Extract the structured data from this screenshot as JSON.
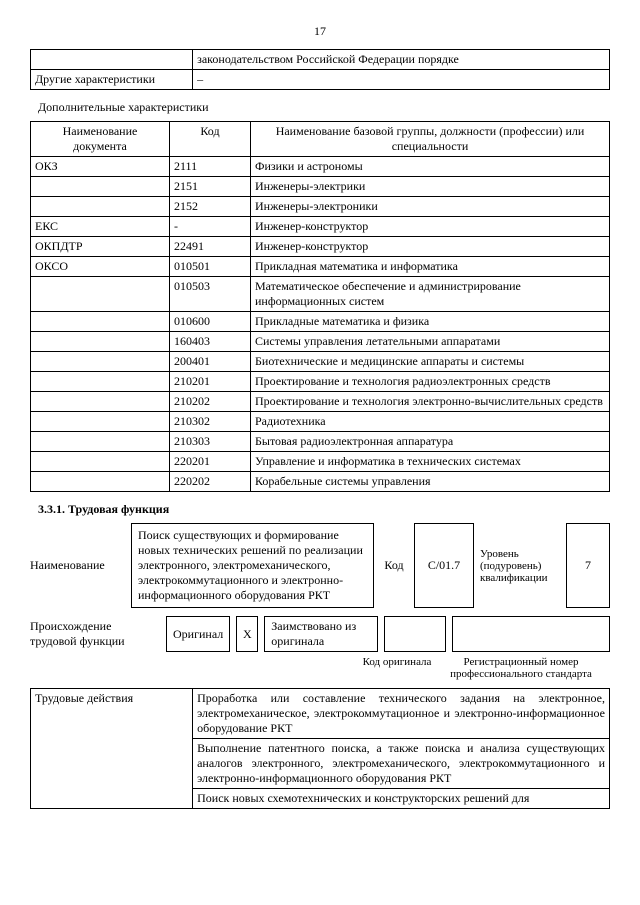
{
  "page_number": "17",
  "top_table": {
    "rows": [
      [
        "",
        "законодательством Российской Федерации порядке"
      ],
      [
        "Другие характеристики",
        "–"
      ]
    ]
  },
  "additional_title": "Дополнительные характеристики",
  "main_table": {
    "headers": [
      "Наименование документа",
      "Код",
      "Наименование базовой группы, должности (профессии) или специальности"
    ],
    "rows": [
      [
        "ОКЗ",
        "2111",
        "Физики и астрономы"
      ],
      [
        "",
        "2151",
        "Инженеры-электрики"
      ],
      [
        "",
        "2152",
        "Инженеры-электроники"
      ],
      [
        "ЕКС",
        "-",
        "Инженер-конструктор"
      ],
      [
        "ОКПДТР",
        "22491",
        "Инженер-конструктор"
      ],
      [
        "ОКСО",
        "010501",
        "Прикладная математика и информатика"
      ],
      [
        "",
        "010503",
        "Математическое обеспечение и администрирование информационных систем"
      ],
      [
        "",
        "010600",
        "Прикладные математика и физика"
      ],
      [
        "",
        "160403",
        "Системы управления летательными аппаратами"
      ],
      [
        "",
        "200401",
        "Биотехнические и медицинские аппараты и системы"
      ],
      [
        "",
        "210201",
        "Проектирование и технология радиоэлектронных средств"
      ],
      [
        "",
        "210202",
        "Проектирование и технология электронно-вычислительных средств"
      ],
      [
        "",
        "210302",
        "Радиотехника"
      ],
      [
        "",
        "210303",
        "Бытовая радиоэлектронная аппаратура"
      ],
      [
        "",
        "220201",
        "Управление и информатика в технических системах"
      ],
      [
        "",
        "220202",
        "Корабельные системы управления"
      ]
    ]
  },
  "section_331": "3.3.1. Трудовая функция",
  "func": {
    "label": "Наименование",
    "text": "Поиск существующих и формирование новых технических решений по реализации электронного, электромеханического, электрокоммутационного и электронно-информационного оборудования РКТ",
    "code_label": "Код",
    "code": "C/01.7",
    "level_label": "Уровень (подуровень) квалификации",
    "level": "7"
  },
  "origin": {
    "label": "Происхождение трудовой функции",
    "orig": "Оригинал",
    "x": "X",
    "borrowed": "Заимствовано из оригинала",
    "sub1": "Код оригинала",
    "sub2": "Регистрационный номер профессионального стандарта"
  },
  "actions_table": {
    "label": "Трудовые действия",
    "rows": [
      "Проработка или составление технического задания на электронное, электромеханическое, электрокоммутационное и электронно-информационное оборудование РКТ",
      "Выполнение патентного поиска, а также поиска и анализа существующих аналогов электронного, электромеханического, электрокоммутационного и электронно-информационного оборудования РКТ",
      "Поиск новых схемотехнических и конструкторских решений для"
    ]
  }
}
